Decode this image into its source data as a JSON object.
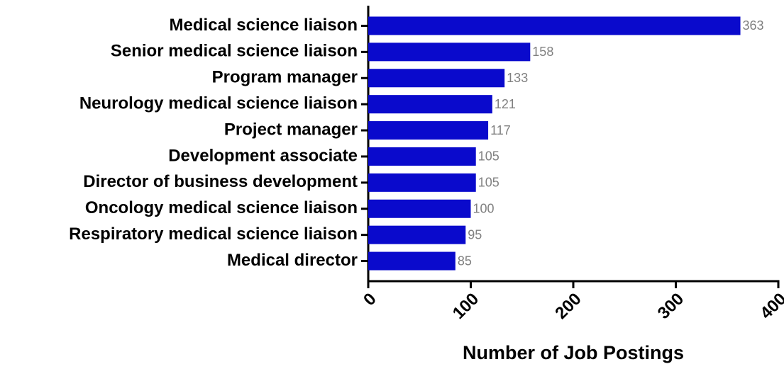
{
  "chart_data": {
    "type": "bar",
    "orientation": "horizontal",
    "categories": [
      "Medical science liaison",
      "Senior medical science liaison",
      "Program manager",
      "Neurology medical science liaison",
      "Project manager",
      "Development associate",
      "Director of business development",
      "Oncology medical science liaison",
      "Respiratory medical science liaison",
      "Medical director"
    ],
    "values": [
      363,
      158,
      133,
      121,
      117,
      105,
      105,
      100,
      95,
      85
    ],
    "color": "#0a0acc",
    "x_label": "Number of Job Postings",
    "xlim": [
      0,
      400
    ],
    "xticks": [
      0,
      100,
      200,
      300,
      400
    ],
    "grid": false
  }
}
